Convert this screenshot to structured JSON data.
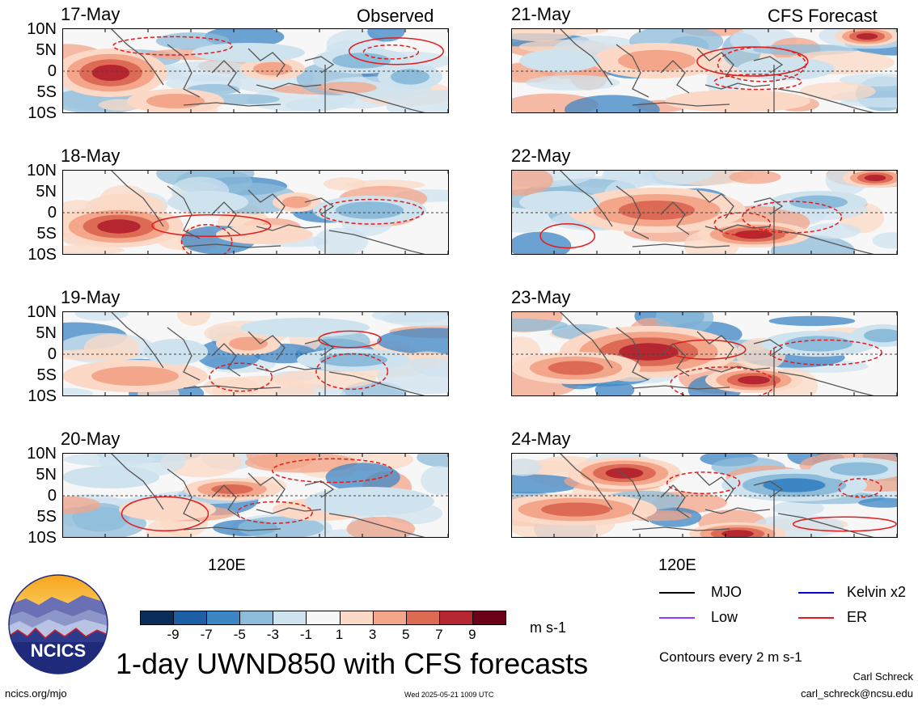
{
  "panels": [
    {
      "date": "17-May",
      "tag": "Observed"
    },
    {
      "date": "18-May",
      "tag": ""
    },
    {
      "date": "19-May",
      "tag": ""
    },
    {
      "date": "20-May",
      "tag": ""
    },
    {
      "date": "21-May",
      "tag": "CFS Forecast"
    },
    {
      "date": "22-May",
      "tag": ""
    },
    {
      "date": "23-May",
      "tag": ""
    },
    {
      "date": "24-May",
      "tag": ""
    }
  ],
  "lat_labels": [
    "10N",
    "5N",
    "0",
    "5S",
    "10S"
  ],
  "lon_label": "120E",
  "colorbar": {
    "colors": [
      "#0a2d5a",
      "#1d5fa5",
      "#3d86c4",
      "#8dbcda",
      "#cfe3ef",
      "#f7f7f7",
      "#fbd9c6",
      "#f3a68a",
      "#dd6a54",
      "#b62630",
      "#6b0019"
    ],
    "labels": [
      "-9",
      "-7",
      "-5",
      "-3",
      "-1",
      "1",
      "3",
      "5",
      "7",
      "9"
    ],
    "unit": "m s-1"
  },
  "legend": {
    "items": [
      {
        "label": "MJO",
        "color": "#000000"
      },
      {
        "label": "Kelvin x2",
        "color": "#0000cc"
      },
      {
        "label": "Low",
        "color": "#9933ff"
      },
      {
        "label": "ER",
        "color": "#e41a1c"
      }
    ],
    "note": "Contours every 2 m s-1"
  },
  "logo_text": "NCICS",
  "main_title": "1-day UWND850 with CFS forecasts",
  "footer": {
    "left": "ncics.org/mjo",
    "center": "Wed 2025-05-21 1009 UTC",
    "author": "Carl Schreck",
    "email": "carl_schreck@ncsu.edu"
  }
}
